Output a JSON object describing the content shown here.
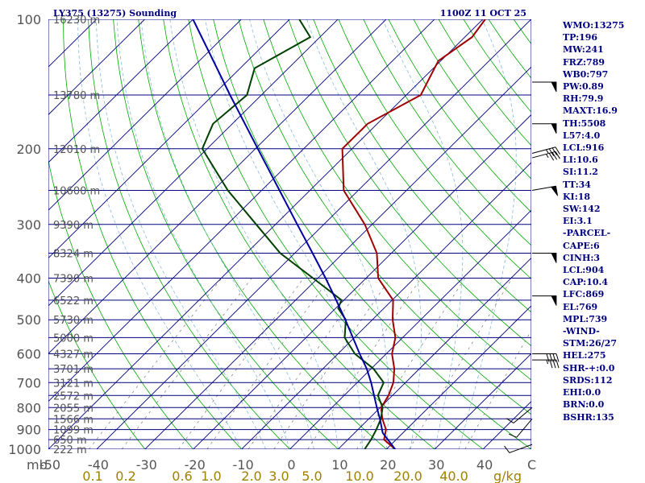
{
  "chart_data": {
    "type": "skew-t log-p sounding",
    "title_left": "LY375 (13275) Sounding",
    "title_right": "1100Z 11 OCT 25",
    "pressure_ticks": [
      100,
      200,
      300,
      400,
      500,
      600,
      700,
      800,
      900,
      1000
    ],
    "pressure_unit_label": "mb",
    "temp_axis": {
      "min": -50,
      "max": 50,
      "ticks": [
        -50,
        -40,
        -30,
        -20,
        -10,
        0,
        10,
        20,
        30,
        40
      ],
      "unit_label": "C"
    },
    "mixing_ratio_axis": {
      "labels": [
        "0.1",
        "0.2",
        "0.6",
        "1.0",
        "2.0",
        "3.0",
        "5.0",
        "10.0",
        "20.0",
        "40.0"
      ],
      "unit_label": "g/kg"
    },
    "height_labels": [
      {
        "p": 100,
        "label": "16230 m"
      },
      {
        "p": 150,
        "label": "13780 m"
      },
      {
        "p": 200,
        "label": "12010 m"
      },
      {
        "p": 250,
        "label": "10600 m"
      },
      {
        "p": 300,
        "label": "9390 m"
      },
      {
        "p": 350,
        "label": "8324 m"
      },
      {
        "p": 400,
        "label": "7390 m"
      },
      {
        "p": 450,
        "label": "6522 m"
      },
      {
        "p": 500,
        "label": "5730 m"
      },
      {
        "p": 550,
        "label": "5000 m"
      },
      {
        "p": 600,
        "label": "4327 m"
      },
      {
        "p": 650,
        "label": "3701 m"
      },
      {
        "p": 700,
        "label": "3121 m"
      },
      {
        "p": 750,
        "label": "2572 m"
      },
      {
        "p": 800,
        "label": "2055 m"
      },
      {
        "p": 850,
        "label": "1566 m"
      },
      {
        "p": 900,
        "label": "1099 m"
      },
      {
        "p": 950,
        "label": "650 m"
      },
      {
        "p": 1000,
        "label": "222 m"
      }
    ],
    "series": [
      {
        "name": "Temperature",
        "color": "#a00000",
        "points": [
          [
            1000,
            21.8
          ],
          [
            950,
            17.5
          ],
          [
            900,
            15.8
          ],
          [
            850,
            12.8
          ],
          [
            800,
            10.2
          ],
          [
            750,
            9.2
          ],
          [
            700,
            7.5
          ],
          [
            650,
            4.8
          ],
          [
            600,
            1.2
          ],
          [
            550,
            -1.5
          ],
          [
            500,
            -5.8
          ],
          [
            450,
            -9.8
          ],
          [
            400,
            -17.5
          ],
          [
            350,
            -23
          ],
          [
            300,
            -31.5
          ],
          [
            250,
            -43
          ],
          [
            200,
            -52
          ],
          [
            175,
            -52
          ],
          [
            150,
            -47
          ],
          [
            125,
            -50.5
          ],
          [
            110,
            -48.5
          ],
          [
            100,
            -49.5
          ]
        ]
      },
      {
        "name": "Dewpoint",
        "color": "#004000",
        "points": [
          [
            1000,
            15.5
          ],
          [
            950,
            14.8
          ],
          [
            900,
            13.8
          ],
          [
            850,
            12.5
          ],
          [
            800,
            10.5
          ],
          [
            750,
            7
          ],
          [
            700,
            5.5
          ],
          [
            650,
            0.5
          ],
          [
            600,
            -6.5
          ],
          [
            550,
            -12
          ],
          [
            500,
            -15.5
          ],
          [
            470,
            -19.5
          ],
          [
            450,
            -20.5
          ],
          [
            400,
            -31
          ],
          [
            350,
            -43
          ],
          [
            300,
            -54
          ],
          [
            250,
            -67
          ],
          [
            200,
            -81
          ],
          [
            175,
            -84
          ],
          [
            150,
            -83
          ],
          [
            130,
            -87
          ],
          [
            110,
            -82
          ],
          [
            100,
            -88
          ]
        ]
      },
      {
        "name": "Parcel",
        "color": "#0000a0",
        "points": [
          [
            1000,
            21.8
          ],
          [
            916,
            15.8
          ],
          [
            850,
            12.3
          ],
          [
            800,
            9.3
          ],
          [
            750,
            6.2
          ],
          [
            700,
            2.9
          ],
          [
            650,
            -0.9
          ],
          [
            600,
            -5.5
          ],
          [
            550,
            -10.3
          ],
          [
            500,
            -15.6
          ],
          [
            450,
            -21.6
          ],
          [
            400,
            -28.4
          ],
          [
            350,
            -36.3
          ],
          [
            300,
            -45.5
          ],
          [
            250,
            -56.3
          ],
          [
            200,
            -69.5
          ],
          [
            150,
            -86.5
          ],
          [
            100,
            -110
          ]
        ]
      }
    ],
    "wind_barbs": [
      {
        "p": 140,
        "speed_kt": 50,
        "from_deg": 90
      },
      {
        "p": 175,
        "speed_kt": 50,
        "from_deg": 90
      },
      {
        "p": 205,
        "speed_kt": 35,
        "from_deg": 75
      },
      {
        "p": 210,
        "speed_kt": 35,
        "from_deg": 75
      },
      {
        "p": 250,
        "speed_kt": 50,
        "from_deg": 80
      },
      {
        "p": 350,
        "speed_kt": 50,
        "from_deg": 90
      },
      {
        "p": 440,
        "speed_kt": 50,
        "from_deg": 90
      },
      {
        "p": 600,
        "speed_kt": 40,
        "from_deg": 90
      },
      {
        "p": 620,
        "speed_kt": 35,
        "from_deg": 90
      },
      {
        "p": 800,
        "speed_kt": 10,
        "from_deg": 230
      },
      {
        "p": 850,
        "speed_kt": 10,
        "from_deg": 220
      },
      {
        "p": 975,
        "speed_kt": 10,
        "from_deg": 250
      }
    ]
  },
  "indices": [
    "WMO:13275",
    "TP:196",
    "MW:241",
    "FRZ:789",
    "WB0:797",
    "PW:0.89",
    "RH:79.9",
    "MAXT:16.9",
    "TH:5508",
    "L57:4.0",
    "LCL:916",
    "LI:10.6",
    "SI:11.2",
    "TT:34",
    "KI:18",
    "SW:142",
    "EI:3.1",
    "-PARCEL-",
    "CAPE:6",
    "CINH:3",
    "LCL:904",
    "CAP:10.4",
    "LFC:869",
    "EL:769",
    "MPL:739",
    "-WIND-",
    "STM:26/27",
    "HEL:275",
    "SHR-+:0.0",
    "SRDS:112",
    "EHI:0.0",
    "BRN:0.0",
    "BSHR:135"
  ],
  "colors": {
    "isobar": "#000080",
    "isotherm": "#000080",
    "dry_adiabat": "#00aa00",
    "moist_adiabat": "#88bbdd",
    "mixing_ratio": "#888888",
    "text_navy": "#000080",
    "text_gray": "#555555",
    "text_olive": "#a08000"
  }
}
